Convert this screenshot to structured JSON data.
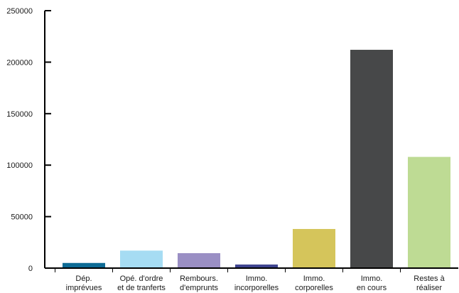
{
  "chart_data": {
    "type": "bar",
    "title": "",
    "xlabel": "",
    "ylabel": "",
    "ylim": [
      0,
      250000
    ],
    "yticks": [
      0,
      50000,
      100000,
      150000,
      200000,
      250000
    ],
    "ytick_labels": [
      "0",
      "50000",
      "100000",
      "150000",
      "200000",
      "250000"
    ],
    "grid": false,
    "legend": "none",
    "categories": [
      [
        "Dép.",
        "imprévues"
      ],
      [
        "Opé. d'ordre",
        "et de tranferts"
      ],
      [
        "Rembours.",
        "d'emprunts"
      ],
      [
        "Immo.",
        "incorporelles"
      ],
      [
        "Immo.",
        "corporelles"
      ],
      [
        "Immo.",
        "en cours"
      ],
      [
        "Restes à",
        "réaliser"
      ]
    ],
    "values": [
      5000,
      17000,
      14500,
      3500,
      38000,
      212000,
      108000
    ],
    "colors": [
      "#0e6b95",
      "#a6dcf3",
      "#9a8fc4",
      "#3f4590",
      "#d5c55b",
      "#474849",
      "#bedb94"
    ],
    "axis_color": "#000000"
  }
}
